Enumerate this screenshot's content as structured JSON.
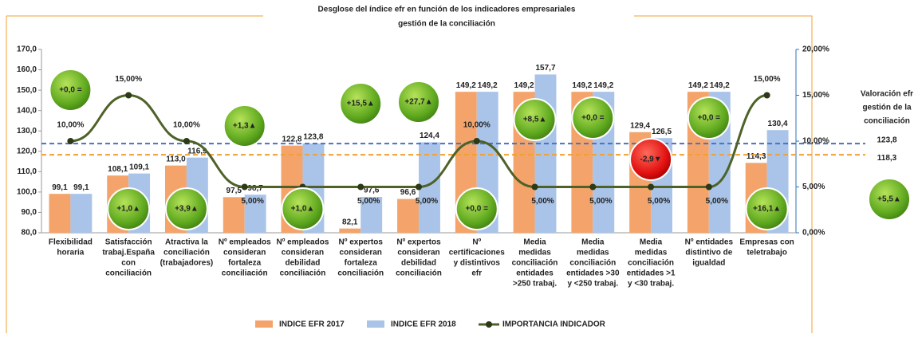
{
  "chart_data": {
    "type": "bar_line",
    "title": [
      "Desglose del índice efr en función de los indicadores empresariales",
      "gestión de la conciliación"
    ],
    "categories": [
      [
        "Flexibilidad",
        "horaria"
      ],
      [
        "Satisfacción",
        "trabaj.España",
        "con",
        "conciliación"
      ],
      [
        "Atractiva la",
        "conciliación",
        "(trabajadores)"
      ],
      [
        "Nº empleados",
        "consideran",
        "fortaleza",
        "conciliación"
      ],
      [
        "Nº empleados",
        "consideran",
        "debilidad",
        "conciliación"
      ],
      [
        "Nº expertos",
        "consideran",
        "fortaleza",
        "conciliación"
      ],
      [
        "Nº expertos",
        "consideran",
        "debilidad",
        "conciliación"
      ],
      [
        "Nº",
        "certificaciones",
        "y distintivos",
        "efr"
      ],
      [
        "Media",
        "medidas",
        "conciliación",
        "entidades",
        ">250 trabaj."
      ],
      [
        "Media",
        "medidas",
        "conciliación",
        "entidades >30",
        "y <250 trabaj."
      ],
      [
        "Media",
        "medidas",
        "conciliación",
        "entidades >1",
        "y <30 trabaj."
      ],
      [
        "Nº entidades",
        "distintivo de",
        "igualdad"
      ],
      [
        "Empresas con",
        "teletrabajo"
      ]
    ],
    "series": [
      {
        "name": "INDICE EFR 2017",
        "kind": "bar",
        "color": "#f4a46a",
        "values": [
          99.1,
          108.1,
          113.0,
          97.5,
          122.8,
          82.1,
          96.6,
          149.2,
          149.2,
          149.2,
          129.4,
          149.2,
          114.3
        ],
        "value_labels": [
          "99,1",
          "108,1",
          "113,0",
          "97,5",
          "122,8",
          "82,1",
          "96,6",
          "149,2",
          "149,2",
          "149,2",
          "129,4",
          "149,2",
          "114,3"
        ]
      },
      {
        "name": "INDICE EFR 2018",
        "kind": "bar",
        "color": "#a9c4e8",
        "values": [
          99.1,
          109.1,
          116.9,
          98.7,
          123.8,
          97.6,
          124.4,
          149.2,
          157.7,
          149.2,
          126.5,
          149.2,
          130.4
        ],
        "value_labels": [
          "99,1",
          "109,1",
          "116,9",
          "98,7",
          "123,8",
          "97,6",
          "124,4",
          "149,2",
          "157,7",
          "149,2",
          "126,5",
          "149,2",
          "130,4"
        ]
      },
      {
        "name": "IMPORTANCIA INDICADOR",
        "kind": "line",
        "axis": "y2",
        "color": "#4e6228",
        "values": [
          10,
          15,
          10,
          5,
          5,
          5,
          5,
          10,
          5,
          5,
          5,
          5,
          15
        ],
        "value_labels": [
          "10,00%",
          "15,00%",
          "10,00%",
          "5,00%",
          "5,00%",
          "5,00%",
          "5,00%",
          "10,00%",
          "5,00%",
          "5,00%",
          "5,00%",
          "5,00%",
          "15,00%"
        ]
      }
    ],
    "badges": [
      "+0,0 =",
      "+1,0▲",
      "+3,9▲",
      "+1,3▲",
      "+1,0▲",
      "+15,5▲",
      "+27,7▲",
      "+0,0 =",
      "+8,5▲",
      "+0,0 =",
      "-2,9▼",
      "+0,0 =",
      "+16,1▲"
    ],
    "overall_badge": "+5,5▲",
    "side_label": [
      "Valoración efr",
      "gestión de la",
      "conciliación"
    ],
    "reference_lines": [
      {
        "value": 123.8,
        "label": "123,8",
        "color": "#4472c4"
      },
      {
        "value": 118.3,
        "label": "118,3",
        "color": "#f0a030"
      }
    ],
    "ylim": [
      80,
      170
    ],
    "yticks": [
      {
        "value": 80,
        "label": "80,0"
      },
      {
        "value": 90,
        "label": "90,0"
      },
      {
        "value": 100,
        "label": "100,0"
      },
      {
        "value": 110,
        "label": "110,0"
      },
      {
        "value": 120,
        "label": "120,0"
      },
      {
        "value": 130,
        "label": "130,0"
      },
      {
        "value": 140,
        "label": "140,0"
      },
      {
        "value": 150,
        "label": "150,0"
      },
      {
        "value": 160,
        "label": "160,0"
      },
      {
        "value": 170,
        "label": "170,0"
      }
    ],
    "y2lim": [
      0,
      20
    ],
    "y2ticks": [
      {
        "value": 0,
        "label": "0,00%"
      },
      {
        "value": 5,
        "label": "5,00%"
      },
      {
        "value": 10,
        "label": "10,00%"
      },
      {
        "value": 15,
        "label": "15,00%"
      },
      {
        "value": 20,
        "label": "20,00%"
      }
    ],
    "legend": "bottom"
  }
}
